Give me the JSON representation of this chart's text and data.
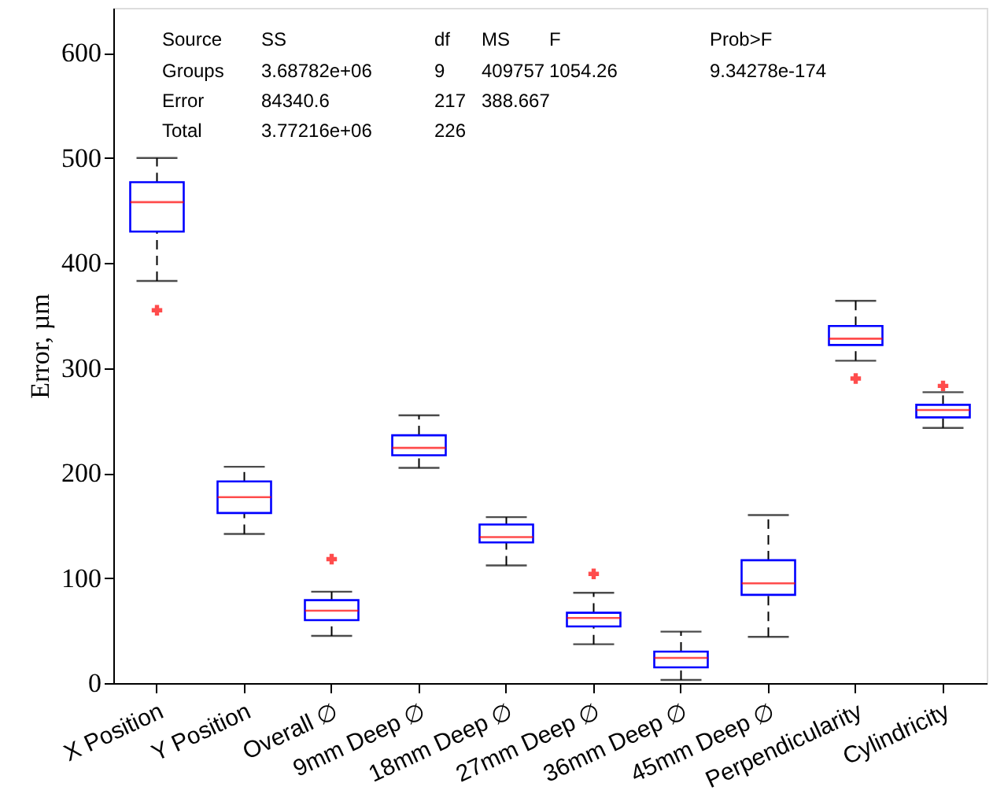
{
  "chart_data": {
    "type": "box",
    "ylabel": "Error, µm",
    "categories": [
      "X Position",
      "Y Position",
      "Overall ∅",
      "9mm Deep ∅",
      "18mm Deep ∅",
      "27mm Deep ∅",
      "36mm Deep ∅",
      "45mm Deep ∅",
      "Perpendicularity",
      "Cylindricity"
    ],
    "boxes": [
      {
        "low": 383,
        "q1": 430,
        "median": 458,
        "q3": 477,
        "high": 500,
        "outliers": [
          355
        ]
      },
      {
        "low": 142,
        "q1": 162,
        "median": 177,
        "q3": 192,
        "high": 206
      },
      {
        "low": 45,
        "q1": 60,
        "median": 69,
        "q3": 79,
        "high": 87,
        "outliers": [
          118
        ]
      },
      {
        "low": 205,
        "q1": 217,
        "median": 224,
        "q3": 236,
        "high": 255
      },
      {
        "low": 112,
        "q1": 134,
        "median": 139,
        "q3": 151,
        "high": 158
      },
      {
        "low": 37,
        "q1": 54,
        "median": 62,
        "q3": 67,
        "high": 86,
        "outliers": [
          104
        ]
      },
      {
        "low": 3,
        "q1": 15,
        "median": 24,
        "q3": 30,
        "high": 49
      },
      {
        "low": 44,
        "q1": 84,
        "median": 95,
        "q3": 117,
        "high": 160
      },
      {
        "low": 307,
        "q1": 322,
        "median": 328,
        "q3": 340,
        "high": 364,
        "outliers": [
          290
        ]
      },
      {
        "low": 243,
        "q1": 253,
        "median": 260,
        "q3": 265,
        "high": 277,
        "outliers": [
          283
        ]
      }
    ],
    "ylim": [
      0,
      643
    ],
    "yticks": [
      0,
      100,
      200,
      300,
      400,
      500,
      600
    ],
    "grid": false,
    "annotations": [
      "Source\tSS\tdf\tMS\tF\tProb>F",
      "Groups\t3.68782e+06\t9\t409757\t1054.26\t9.34278e-174",
      "Error\t84340.6\t217\t388.667",
      "Total\t3.77216e+06\t226"
    ]
  }
}
